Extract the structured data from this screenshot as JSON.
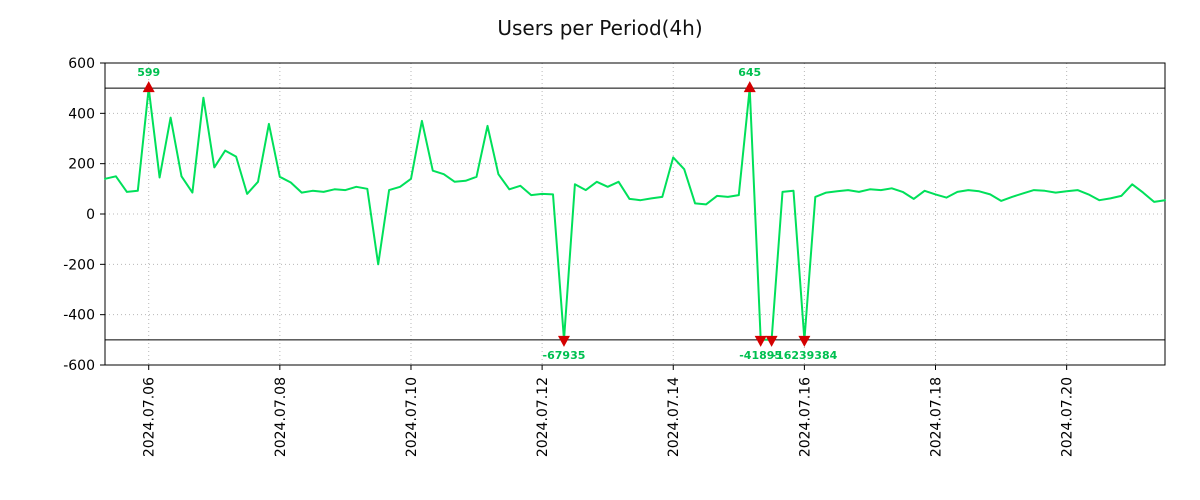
{
  "title": "Users per Period(4h)",
  "chart_data": {
    "type": "line",
    "title": "Users per Period(4h)",
    "xlabel": "",
    "ylabel": "",
    "ylim": [
      -600,
      600
    ],
    "yticks": [
      -600,
      -400,
      -200,
      0,
      200,
      400,
      600
    ],
    "clip_threshold": 500,
    "grid": "dotted",
    "line_color": "#00e05a",
    "marker_color": "#d40000",
    "annotation_color": "#00c050",
    "threshold_line_color": "#000000",
    "x_start": "2024.07.05 08:00",
    "x_step_hours": 4,
    "xtick_labels": [
      "2024.07.06",
      "2024.07.08",
      "2024.07.10",
      "2024.07.12",
      "2024.07.14",
      "2024.07.16",
      "2024.07.18",
      "2024.07.20"
    ],
    "xtick_indices": [
      4,
      16,
      28,
      40,
      52,
      64,
      76,
      88
    ],
    "values": [
      140,
      150,
      88,
      92,
      500,
      145,
      383,
      150,
      85,
      462,
      185,
      252,
      228,
      80,
      128,
      358,
      148,
      125,
      85,
      92,
      88,
      98,
      95,
      108,
      100,
      -200,
      95,
      108,
      140,
      370,
      172,
      158,
      128,
      132,
      148,
      350,
      158,
      98,
      112,
      75,
      80,
      78,
      -500,
      118,
      95,
      128,
      108,
      128,
      60,
      55,
      62,
      68,
      225,
      178,
      42,
      38,
      72,
      68,
      75,
      500,
      -500,
      -500,
      88,
      92,
      -500,
      68,
      85,
      90,
      95,
      88,
      98,
      95,
      102,
      88,
      60,
      92,
      78,
      65,
      88,
      95,
      90,
      78,
      52,
      68,
      82,
      95,
      92,
      85,
      90,
      95,
      78,
      55,
      62,
      72,
      118,
      85,
      48,
      55
    ],
    "extreme_markers": [
      {
        "index": 4,
        "dir": "up",
        "label": "599"
      },
      {
        "index": 42,
        "dir": "down",
        "label": "-67935"
      },
      {
        "index": 59,
        "dir": "up",
        "label": "645"
      },
      {
        "index": 60,
        "dir": "down",
        "label": "-41895"
      },
      {
        "index": 61,
        "dir": "down",
        "label": ""
      },
      {
        "index": 64,
        "dir": "down",
        "label": "-16239384"
      }
    ]
  }
}
